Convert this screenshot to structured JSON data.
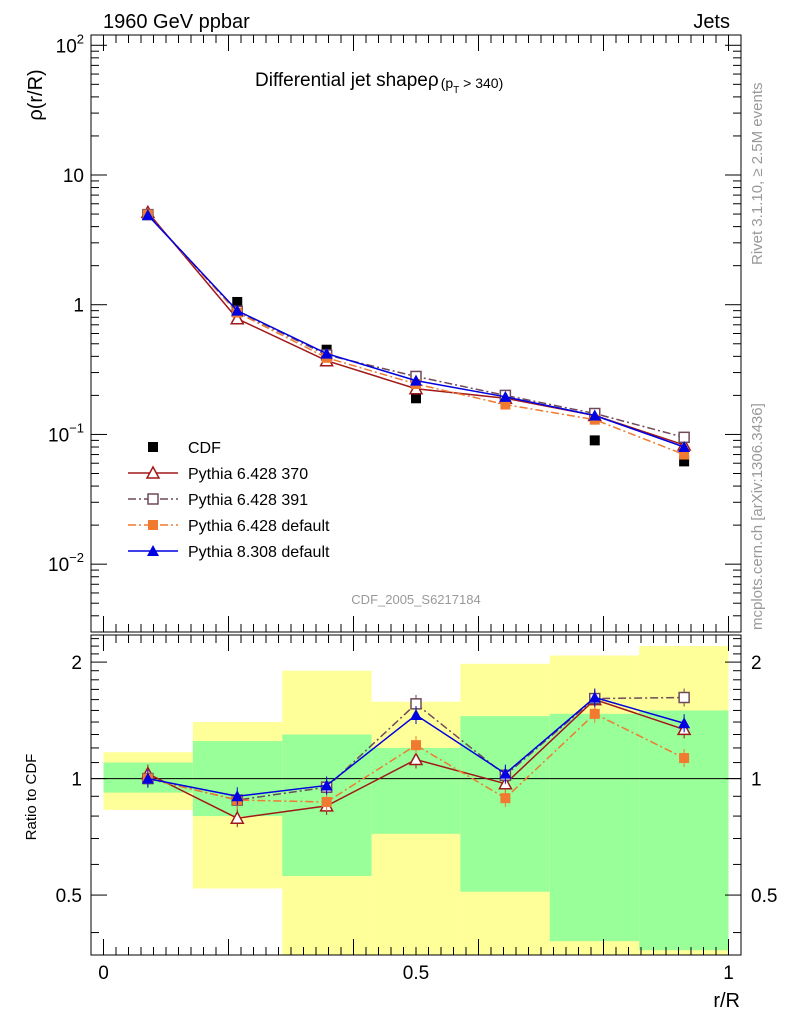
{
  "header": {
    "left": "1960 GeV ppbar",
    "right": "Jets"
  },
  "side_labels": {
    "rivet": "Rivet 3.1.10, ≥ 2.5M events",
    "url": "mcplots.cern.ch [arXiv:1306.3436]"
  },
  "colors": {
    "cdf": "#000000",
    "p370": "#a01818",
    "p391": "#6e4a5a",
    "p6def": "#f07a30",
    "p8def": "#0000e0",
    "band_inner": "#99ff99",
    "band_outer": "#ffff99",
    "axis": "#000000",
    "watermark": "#999999"
  },
  "chart_data": [
    {
      "type": "line",
      "title": "Differential jet shapeρ (p_T > 340)",
      "title_main": "Differential jet shapeρ",
      "title_sub": "(p",
      "title_sub_idx": "T",
      "title_sub_end": " > 340)",
      "ylabel": "ρ(r/R)",
      "yscale": "log",
      "ylim": [
        0.003,
        120
      ],
      "xlim": [
        -0.02,
        1.02
      ],
      "ytick_labels": [
        {
          "value": 100,
          "base": "10",
          "exp": "2"
        },
        {
          "value": 10,
          "base": "10",
          "exp": ""
        },
        {
          "value": 1,
          "base": "1",
          "exp": ""
        },
        {
          "value": 0.1,
          "base": "10",
          "exp": "−1"
        },
        {
          "value": 0.01,
          "base": "10",
          "exp": "−2"
        }
      ],
      "watermark": "CDF_2005_S6217184",
      "x": [
        0.071,
        0.214,
        0.357,
        0.5,
        0.643,
        0.786,
        0.929
      ],
      "series": [
        {
          "name": "CDF",
          "key": "cdf",
          "style": "marker-only",
          "marker": "filled-square",
          "values": [
            5.0,
            1.05,
            0.45,
            0.19,
            0.195,
            0.09,
            0.062
          ]
        },
        {
          "name": "Pythia 6.428 370",
          "key": "p370",
          "style": "solid",
          "marker": "open-triangle",
          "values": [
            5.15,
            0.78,
            0.37,
            0.225,
            0.19,
            0.14,
            0.083
          ]
        },
        {
          "name": "Pythia 6.428 391",
          "key": "p391",
          "style": "dashdot",
          "marker": "open-square",
          "values": [
            4.95,
            0.89,
            0.41,
            0.28,
            0.2,
            0.145,
            0.095
          ]
        },
        {
          "name": "Pythia 6.428 default",
          "key": "p6def",
          "style": "dashdot",
          "marker": "filled-square",
          "values": [
            4.95,
            0.87,
            0.39,
            0.245,
            0.17,
            0.13,
            0.07
          ]
        },
        {
          "name": "Pythia 8.308 default",
          "key": "p8def",
          "style": "solid",
          "marker": "filled-triangle",
          "values": [
            4.9,
            0.9,
            0.42,
            0.26,
            0.195,
            0.14,
            0.08
          ]
        }
      ]
    },
    {
      "type": "line",
      "title": "",
      "xlabel": "r/R",
      "ylabel": "Ratio to CDF",
      "yscale": "log",
      "ylim": [
        0.35,
        2.35
      ],
      "xlim": [
        -0.02,
        1.02
      ],
      "xticks": [
        0,
        0.5,
        1
      ],
      "xtick_labels": [
        "0",
        "0.5",
        "1"
      ],
      "yticks": [
        0.5,
        1,
        2
      ],
      "ytick_labels": [
        "0.5",
        "1",
        "2"
      ],
      "reference_line": 1,
      "x": [
        0.071,
        0.214,
        0.357,
        0.5,
        0.643,
        0.786,
        0.929
      ],
      "bin_edges": [
        0,
        0.143,
        0.286,
        0.429,
        0.571,
        0.714,
        0.857,
        1.0
      ],
      "uncertainty_bands": [
        {
          "name": "inner",
          "low": [
            0.92,
            0.8,
            0.56,
            0.72,
            0.51,
            0.38,
            0.36
          ],
          "high": [
            1.1,
            1.25,
            1.3,
            1.2,
            1.45,
            1.47,
            1.5
          ]
        },
        {
          "name": "outer",
          "low": [
            0.83,
            0.52,
            0.2,
            0.2,
            0.2,
            0.2,
            0.2
          ],
          "high": [
            1.17,
            1.4,
            1.9,
            1.58,
            1.98,
            2.08,
            2.2
          ]
        }
      ],
      "series": [
        {
          "name": "Pythia 6.428 370",
          "key": "p370",
          "values": [
            1.03,
            0.79,
            0.85,
            1.12,
            0.97,
            1.6,
            1.34
          ]
        },
        {
          "name": "Pythia 6.428 391",
          "key": "p391",
          "values": [
            1.0,
            0.88,
            0.95,
            1.56,
            1.02,
            1.61,
            1.62
          ]
        },
        {
          "name": "Pythia 6.428 default",
          "key": "p6def",
          "values": [
            1.0,
            0.88,
            0.87,
            1.22,
            0.89,
            1.47,
            1.13
          ]
        },
        {
          "name": "Pythia 8.308 default",
          "key": "p8def",
          "values": [
            1.0,
            0.9,
            0.96,
            1.46,
            1.03,
            1.62,
            1.39
          ]
        }
      ]
    }
  ]
}
